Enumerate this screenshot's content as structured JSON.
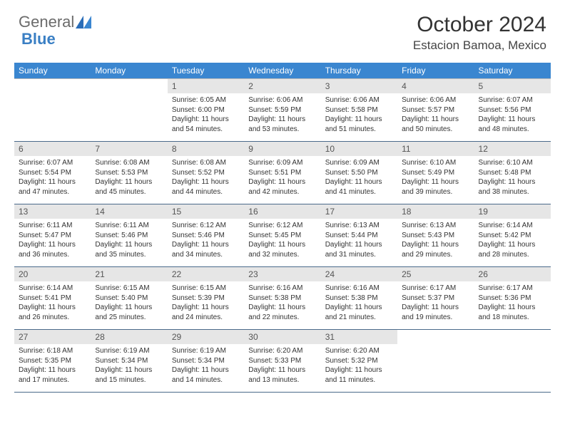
{
  "logo": {
    "part1": "General",
    "part2": "Blue"
  },
  "title": "October 2024",
  "location": "Estacion Bamoa, Mexico",
  "colors": {
    "header_bg": "#3a86d0",
    "header_text": "#ffffff",
    "date_bg": "#e6e6e6",
    "border": "#4a6a8a",
    "body_text": "#333333",
    "logo_gray": "#6b6b6b",
    "logo_blue": "#3a7fc4"
  },
  "typography": {
    "title_fontsize": 30,
    "location_fontsize": 17,
    "dayheader_fontsize": 12,
    "date_fontsize": 12,
    "body_fontsize": 10
  },
  "day_names": [
    "Sunday",
    "Monday",
    "Tuesday",
    "Wednesday",
    "Thursday",
    "Friday",
    "Saturday"
  ],
  "weeks": [
    [
      {
        "date": "",
        "lines": [
          "",
          "",
          "",
          ""
        ]
      },
      {
        "date": "",
        "lines": [
          "",
          "",
          "",
          ""
        ]
      },
      {
        "date": "1",
        "lines": [
          "Sunrise: 6:05 AM",
          "Sunset: 6:00 PM",
          "Daylight: 11 hours",
          "and 54 minutes."
        ]
      },
      {
        "date": "2",
        "lines": [
          "Sunrise: 6:06 AM",
          "Sunset: 5:59 PM",
          "Daylight: 11 hours",
          "and 53 minutes."
        ]
      },
      {
        "date": "3",
        "lines": [
          "Sunrise: 6:06 AM",
          "Sunset: 5:58 PM",
          "Daylight: 11 hours",
          "and 51 minutes."
        ]
      },
      {
        "date": "4",
        "lines": [
          "Sunrise: 6:06 AM",
          "Sunset: 5:57 PM",
          "Daylight: 11 hours",
          "and 50 minutes."
        ]
      },
      {
        "date": "5",
        "lines": [
          "Sunrise: 6:07 AM",
          "Sunset: 5:56 PM",
          "Daylight: 11 hours",
          "and 48 minutes."
        ]
      }
    ],
    [
      {
        "date": "6",
        "lines": [
          "Sunrise: 6:07 AM",
          "Sunset: 5:54 PM",
          "Daylight: 11 hours",
          "and 47 minutes."
        ]
      },
      {
        "date": "7",
        "lines": [
          "Sunrise: 6:08 AM",
          "Sunset: 5:53 PM",
          "Daylight: 11 hours",
          "and 45 minutes."
        ]
      },
      {
        "date": "8",
        "lines": [
          "Sunrise: 6:08 AM",
          "Sunset: 5:52 PM",
          "Daylight: 11 hours",
          "and 44 minutes."
        ]
      },
      {
        "date": "9",
        "lines": [
          "Sunrise: 6:09 AM",
          "Sunset: 5:51 PM",
          "Daylight: 11 hours",
          "and 42 minutes."
        ]
      },
      {
        "date": "10",
        "lines": [
          "Sunrise: 6:09 AM",
          "Sunset: 5:50 PM",
          "Daylight: 11 hours",
          "and 41 minutes."
        ]
      },
      {
        "date": "11",
        "lines": [
          "Sunrise: 6:10 AM",
          "Sunset: 5:49 PM",
          "Daylight: 11 hours",
          "and 39 minutes."
        ]
      },
      {
        "date": "12",
        "lines": [
          "Sunrise: 6:10 AM",
          "Sunset: 5:48 PM",
          "Daylight: 11 hours",
          "and 38 minutes."
        ]
      }
    ],
    [
      {
        "date": "13",
        "lines": [
          "Sunrise: 6:11 AM",
          "Sunset: 5:47 PM",
          "Daylight: 11 hours",
          "and 36 minutes."
        ]
      },
      {
        "date": "14",
        "lines": [
          "Sunrise: 6:11 AM",
          "Sunset: 5:46 PM",
          "Daylight: 11 hours",
          "and 35 minutes."
        ]
      },
      {
        "date": "15",
        "lines": [
          "Sunrise: 6:12 AM",
          "Sunset: 5:46 PM",
          "Daylight: 11 hours",
          "and 34 minutes."
        ]
      },
      {
        "date": "16",
        "lines": [
          "Sunrise: 6:12 AM",
          "Sunset: 5:45 PM",
          "Daylight: 11 hours",
          "and 32 minutes."
        ]
      },
      {
        "date": "17",
        "lines": [
          "Sunrise: 6:13 AM",
          "Sunset: 5:44 PM",
          "Daylight: 11 hours",
          "and 31 minutes."
        ]
      },
      {
        "date": "18",
        "lines": [
          "Sunrise: 6:13 AM",
          "Sunset: 5:43 PM",
          "Daylight: 11 hours",
          "and 29 minutes."
        ]
      },
      {
        "date": "19",
        "lines": [
          "Sunrise: 6:14 AM",
          "Sunset: 5:42 PM",
          "Daylight: 11 hours",
          "and 28 minutes."
        ]
      }
    ],
    [
      {
        "date": "20",
        "lines": [
          "Sunrise: 6:14 AM",
          "Sunset: 5:41 PM",
          "Daylight: 11 hours",
          "and 26 minutes."
        ]
      },
      {
        "date": "21",
        "lines": [
          "Sunrise: 6:15 AM",
          "Sunset: 5:40 PM",
          "Daylight: 11 hours",
          "and 25 minutes."
        ]
      },
      {
        "date": "22",
        "lines": [
          "Sunrise: 6:15 AM",
          "Sunset: 5:39 PM",
          "Daylight: 11 hours",
          "and 24 minutes."
        ]
      },
      {
        "date": "23",
        "lines": [
          "Sunrise: 6:16 AM",
          "Sunset: 5:38 PM",
          "Daylight: 11 hours",
          "and 22 minutes."
        ]
      },
      {
        "date": "24",
        "lines": [
          "Sunrise: 6:16 AM",
          "Sunset: 5:38 PM",
          "Daylight: 11 hours",
          "and 21 minutes."
        ]
      },
      {
        "date": "25",
        "lines": [
          "Sunrise: 6:17 AM",
          "Sunset: 5:37 PM",
          "Daylight: 11 hours",
          "and 19 minutes."
        ]
      },
      {
        "date": "26",
        "lines": [
          "Sunrise: 6:17 AM",
          "Sunset: 5:36 PM",
          "Daylight: 11 hours",
          "and 18 minutes."
        ]
      }
    ],
    [
      {
        "date": "27",
        "lines": [
          "Sunrise: 6:18 AM",
          "Sunset: 5:35 PM",
          "Daylight: 11 hours",
          "and 17 minutes."
        ]
      },
      {
        "date": "28",
        "lines": [
          "Sunrise: 6:19 AM",
          "Sunset: 5:34 PM",
          "Daylight: 11 hours",
          "and 15 minutes."
        ]
      },
      {
        "date": "29",
        "lines": [
          "Sunrise: 6:19 AM",
          "Sunset: 5:34 PM",
          "Daylight: 11 hours",
          "and 14 minutes."
        ]
      },
      {
        "date": "30",
        "lines": [
          "Sunrise: 6:20 AM",
          "Sunset: 5:33 PM",
          "Daylight: 11 hours",
          "and 13 minutes."
        ]
      },
      {
        "date": "31",
        "lines": [
          "Sunrise: 6:20 AM",
          "Sunset: 5:32 PM",
          "Daylight: 11 hours",
          "and 11 minutes."
        ]
      },
      {
        "date": "",
        "lines": [
          "",
          "",
          "",
          ""
        ]
      },
      {
        "date": "",
        "lines": [
          "",
          "",
          "",
          ""
        ]
      }
    ]
  ]
}
